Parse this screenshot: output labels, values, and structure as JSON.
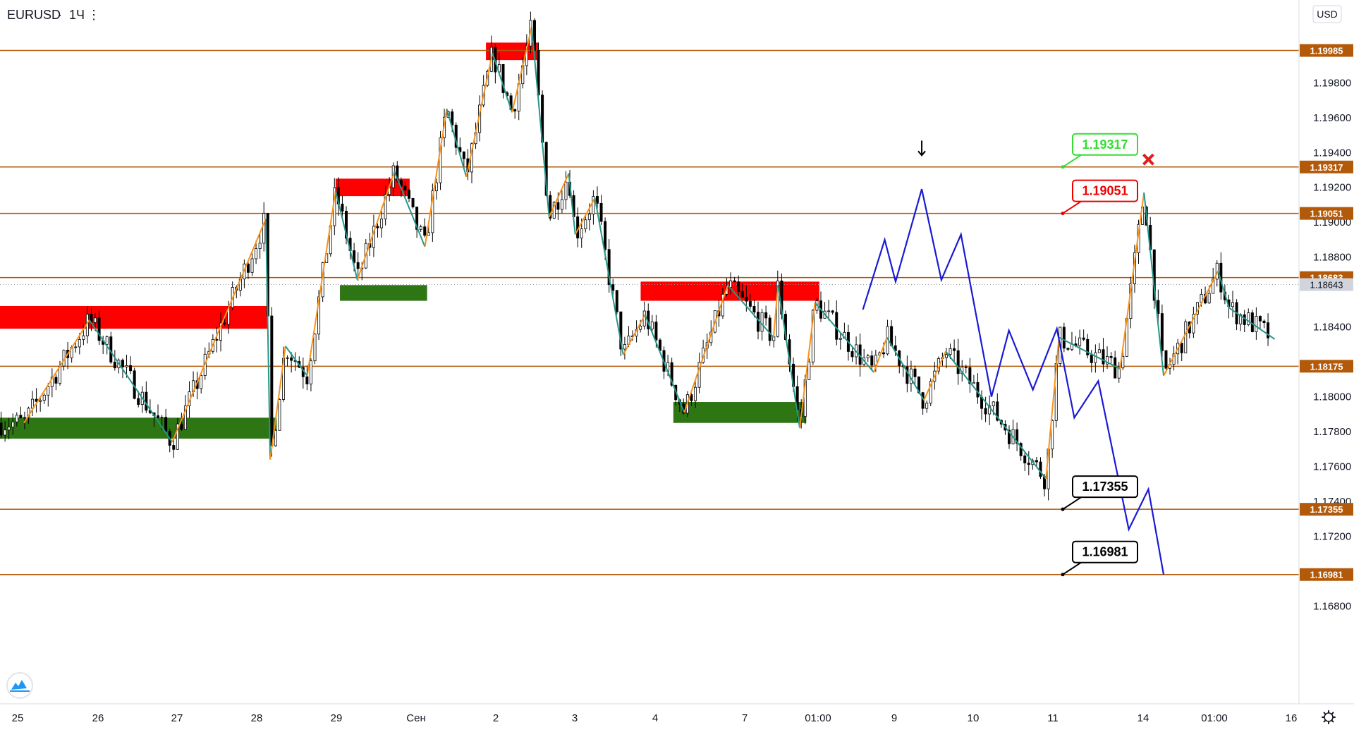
{
  "header": {
    "symbol": "EURUSD",
    "separator": "·",
    "interval": "1Ч",
    "dots": "⋮"
  },
  "currency_button": "USD",
  "logo_icon": "tradingview-logo-icon",
  "settings_icon": "gear-icon",
  "colors": {
    "level_line": "#b35a0a",
    "level_label_bg": "#b35a0a",
    "supply_zone": "#ff0000",
    "demand_zone": "#2e7514",
    "zigzag_up": "#f7931a",
    "zigzag_down": "#26968a",
    "forecast": "#1a1ad6",
    "candle": "#000000",
    "current_price_bg": "#d1d4dc"
  },
  "chart_data": {
    "type": "candlestick",
    "symbol": "EURUSD",
    "interval": "1Ч",
    "currency": "USD",
    "ylim": [
      1.1665,
      1.2015
    ],
    "x_ticks": [
      "25",
      "26",
      "27",
      "28",
      "29",
      "Сен",
      "2",
      "3",
      "4",
      "7",
      "01:00",
      "9",
      "10",
      "11",
      "14",
      "01:00",
      "16"
    ],
    "y_ticks": [
      "1.19800",
      "1.19600",
      "1.19400",
      "1.19200",
      "1.19000",
      "1.18800",
      "1.18400",
      "1.18000",
      "1.17800",
      "1.17600",
      "1.17400",
      "1.17200",
      "1.16800"
    ],
    "y_tick_values": [
      1.198,
      1.196,
      1.194,
      1.192,
      1.19,
      1.188,
      1.184,
      1.18,
      1.178,
      1.176,
      1.174,
      1.172,
      1.168
    ],
    "levels": [
      {
        "label": "1.19985",
        "value": 1.19985
      },
      {
        "label": "1.19317",
        "value": 1.19317
      },
      {
        "label": "1.19051",
        "value": 1.19051
      },
      {
        "label": "1.18683",
        "value": 1.18683
      },
      {
        "label": "1.18175",
        "value": 1.18175
      },
      {
        "label": "1.17355",
        "value": 1.17355
      },
      {
        "label": "1.16981",
        "value": 1.16981
      }
    ],
    "current_price": {
      "label": "1.18643",
      "value": 1.18643
    },
    "callouts": [
      {
        "label": "1.19317",
        "value": 1.19317,
        "color": "#33dd33"
      },
      {
        "label": "1.19051",
        "value": 1.19051,
        "color": "#ee0000"
      },
      {
        "label": "1.17355",
        "value": 1.17355,
        "color": "#000000"
      },
      {
        "label": "1.16981",
        "value": 1.16981,
        "color": "#000000"
      }
    ],
    "zones": [
      {
        "kind": "supply",
        "t0": 0,
        "t1": 12.3,
        "v_top": 1.1852,
        "v_bot": 1.1839
      },
      {
        "kind": "demand",
        "t0": 0,
        "t1": 12.7,
        "v_top": 1.1788,
        "v_bot": 1.1776
      },
      {
        "kind": "supply",
        "t0": 15.4,
        "t1": 18.8,
        "v_top": 1.1925,
        "v_bot": 1.1915
      },
      {
        "kind": "demand",
        "t0": 15.6,
        "t1": 19.6,
        "v_top": 1.1864,
        "v_bot": 1.1855
      },
      {
        "kind": "supply",
        "t0": 22.3,
        "t1": 24.7,
        "v_top": 1.2003,
        "v_bot": 1.1993
      },
      {
        "kind": "supply",
        "t0": 29.4,
        "t1": 37.6,
        "v_top": 1.1866,
        "v_bot": 1.1855
      },
      {
        "kind": "demand",
        "t0": 30.9,
        "t1": 37.0,
        "v_top": 1.1797,
        "v_bot": 1.1785
      }
    ],
    "zigzag": [
      [
        1.1,
        1.1785
      ],
      [
        4.1,
        1.1844
      ],
      [
        7.9,
        1.1774
      ],
      [
        12.2,
        1.1902
      ],
      [
        12.4,
        1.1764
      ],
      [
        13.1,
        1.1829
      ],
      [
        14.1,
        1.1812
      ],
      [
        15.4,
        1.1918
      ],
      [
        16.4,
        1.1867
      ],
      [
        18.1,
        1.1929
      ],
      [
        19.5,
        1.1886
      ],
      [
        20.5,
        1.1965
      ],
      [
        21.4,
        1.1926
      ],
      [
        22.6,
        1.1997
      ],
      [
        23.5,
        1.1963
      ],
      [
        24.4,
        1.2012
      ],
      [
        25.2,
        1.1903
      ],
      [
        26.1,
        1.1928
      ],
      [
        26.4,
        1.1893
      ],
      [
        27.3,
        1.1914
      ],
      [
        28.6,
        1.1824
      ],
      [
        29.6,
        1.1847
      ],
      [
        31.4,
        1.1791
      ],
      [
        33.4,
        1.1864
      ],
      [
        35.5,
        1.1834
      ],
      [
        35.7,
        1.1864
      ],
      [
        36.7,
        1.1782
      ],
      [
        37.4,
        1.1854
      ],
      [
        40.1,
        1.1814
      ],
      [
        40.7,
        1.1834
      ],
      [
        42.4,
        1.1798
      ],
      [
        43.4,
        1.1826
      ],
      [
        48.0,
        1.1753
      ],
      [
        48.6,
        1.1834
      ],
      [
        51.4,
        1.1816
      ],
      [
        52.5,
        1.1917
      ],
      [
        53.4,
        1.1812
      ],
      [
        55.9,
        1.1872
      ],
      [
        56.4,
        1.1851
      ],
      [
        58.5,
        1.1833
      ]
    ],
    "forecast_path": [
      [
        39.6,
        1.185
      ],
      [
        40.6,
        1.189
      ],
      [
        41.1,
        1.1866
      ],
      [
        42.3,
        1.1919
      ],
      [
        43.2,
        1.1867
      ],
      [
        44.1,
        1.1893
      ],
      [
        45.5,
        1.18
      ],
      [
        46.3,
        1.1838
      ],
      [
        47.4,
        1.1804
      ],
      [
        48.5,
        1.1839
      ],
      [
        49.3,
        1.1788
      ],
      [
        50.4,
        1.1809
      ],
      [
        51.8,
        1.1724
      ],
      [
        52.7,
        1.1747
      ],
      [
        53.4,
        1.1698
      ]
    ],
    "arrow_marker": {
      "t": 42.3,
      "v": 1.1942
    },
    "x_marker": {
      "t": 52.7,
      "v": 1.1936
    },
    "candles": "generated-from-zigzag"
  }
}
